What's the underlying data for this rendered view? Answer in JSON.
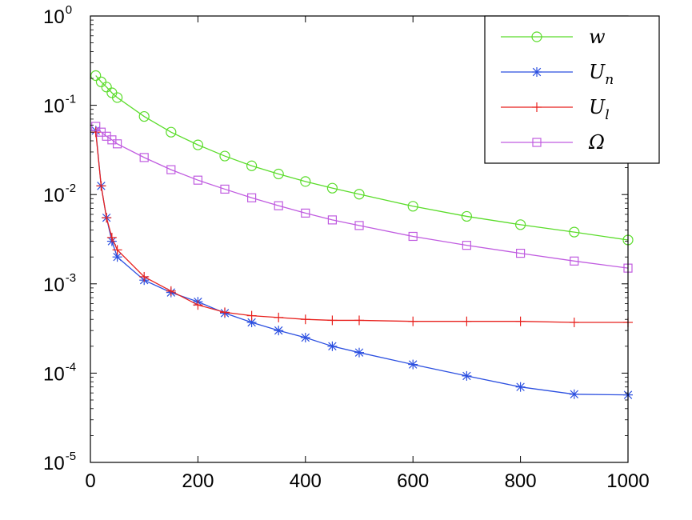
{
  "chart_data": {
    "type": "line",
    "title": "",
    "xlabel": "",
    "ylabel": "",
    "x_scale": "linear",
    "y_scale": "log",
    "xlim": [
      0,
      1000
    ],
    "ylim": [
      1e-05,
      1
    ],
    "x_ticks": [
      0,
      200,
      400,
      600,
      800,
      1000
    ],
    "y_ticks": [
      {
        "base": "10",
        "exp": "0",
        "value": 1
      },
      {
        "base": "10",
        "exp": "-1",
        "value": 0.1
      },
      {
        "base": "10",
        "exp": "-2",
        "value": 0.01
      },
      {
        "base": "10",
        "exp": "-3",
        "value": 0.001
      },
      {
        "base": "10",
        "exp": "-4",
        "value": 0.0001
      },
      {
        "base": "10",
        "exp": "-5",
        "value": 1e-05
      }
    ],
    "grid": false,
    "legend_position": "top-right",
    "series": [
      {
        "name": "w",
        "color": "#5adc2a",
        "marker": "circle",
        "x": [
          10,
          20,
          30,
          40,
          50,
          100,
          150,
          200,
          250,
          300,
          350,
          400,
          450,
          500,
          600,
          700,
          800,
          900,
          1000
        ],
        "y": [
          0.215,
          0.183,
          0.16,
          0.138,
          0.122,
          0.075,
          0.05,
          0.036,
          0.027,
          0.021,
          0.017,
          0.014,
          0.0118,
          0.0101,
          0.0074,
          0.0057,
          0.0046,
          0.0038,
          0.0031
        ]
      },
      {
        "name": "U",
        "subscript": "n",
        "color": "#2b4fe0",
        "marker": "asterisk",
        "x": [
          10,
          20,
          30,
          40,
          50,
          100,
          150,
          200,
          250,
          300,
          350,
          400,
          450,
          500,
          600,
          700,
          800,
          900,
          1000
        ],
        "y": [
          0.052,
          0.0125,
          0.0055,
          0.003,
          0.002,
          0.0011,
          0.0008,
          0.00063,
          0.00047,
          0.00037,
          0.0003,
          0.00025,
          0.0002,
          0.00017,
          0.000125,
          9.3e-05,
          7e-05,
          5.8e-05,
          5.7e-05
        ]
      },
      {
        "name": "U",
        "subscript": "l",
        "color": "#e8211d",
        "marker": "plus",
        "x": [
          10,
          20,
          30,
          40,
          50,
          100,
          150,
          200,
          250,
          300,
          350,
          400,
          450,
          500,
          600,
          700,
          800,
          900,
          1000
        ],
        "y": [
          0.05,
          0.0125,
          0.0055,
          0.0033,
          0.0024,
          0.0012,
          0.00083,
          0.00058,
          0.00048,
          0.00044,
          0.00042,
          0.0004,
          0.00039,
          0.00039,
          0.00038,
          0.00038,
          0.00038,
          0.00037,
          0.00037
        ]
      },
      {
        "name": "Ω",
        "color": "#c05ce0",
        "marker": "square",
        "x": [
          10,
          20,
          30,
          40,
          50,
          100,
          150,
          200,
          250,
          300,
          350,
          400,
          450,
          500,
          600,
          700,
          800,
          900,
          1000
        ],
        "y": [
          0.058,
          0.05,
          0.045,
          0.041,
          0.037,
          0.026,
          0.019,
          0.0145,
          0.0115,
          0.0092,
          0.0075,
          0.0062,
          0.0052,
          0.0045,
          0.0034,
          0.0027,
          0.0022,
          0.0018,
          0.0015
        ]
      }
    ]
  }
}
